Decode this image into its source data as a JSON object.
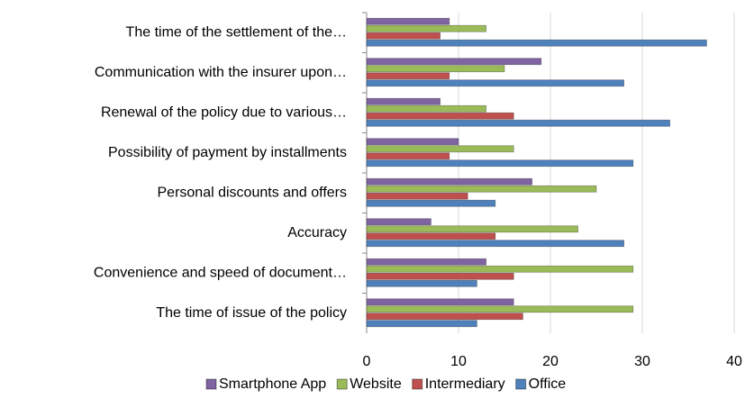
{
  "chart_data": {
    "type": "bar",
    "orientation": "horizontal",
    "categories": [
      "The time of the settlement of the…",
      "Communication with the insurer upon…",
      "Renewal of the policy due to various…",
      "Possibility of payment by installments",
      "Personal discounts and offers",
      "Accuracy",
      "Convenience and speed of document…",
      "The time of issue of the policy"
    ],
    "series": [
      {
        "name": "Smartphone App",
        "color": "#8064a2",
        "values": [
          9,
          19,
          8,
          10,
          18,
          7,
          13,
          16
        ]
      },
      {
        "name": "Website",
        "color": "#9bbb59",
        "values": [
          13,
          15,
          13,
          16,
          25,
          23,
          29,
          29
        ]
      },
      {
        "name": "Intermediary",
        "color": "#c0504d",
        "values": [
          8,
          9,
          16,
          9,
          11,
          14,
          16,
          17
        ]
      },
      {
        "name": "Office",
        "color": "#4f81bd",
        "values": [
          37,
          28,
          33,
          29,
          14,
          28,
          12,
          12
        ]
      }
    ],
    "xlim": [
      0,
      40
    ],
    "xticks": [
      0,
      10,
      20,
      30,
      40
    ],
    "grid": true,
    "legend": "bottom"
  }
}
